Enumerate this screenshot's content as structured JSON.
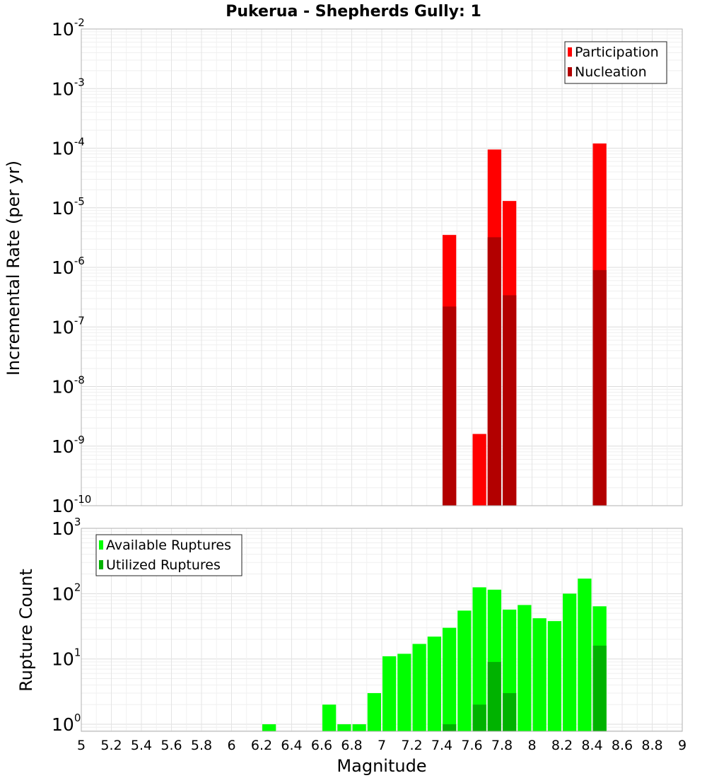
{
  "chart_data": {
    "title": "Pukerua - Shepherds Gully: 1",
    "xlabel": "Magnitude",
    "x_ticks": [
      "5",
      "5.2",
      "5.4",
      "5.6",
      "5.8",
      "6",
      "6.2",
      "6.4",
      "6.6",
      "6.8",
      "7",
      "7.2",
      "7.4",
      "7.6",
      "7.8",
      "8",
      "8.2",
      "8.4",
      "8.6",
      "8.8",
      "9"
    ],
    "xlim": [
      5,
      9
    ],
    "bin_width": 0.1,
    "panels": [
      {
        "type": "bar",
        "scale": "log",
        "ylabel": "Incremental Rate (per yr)",
        "ylim": [
          1e-10,
          0.01
        ],
        "y_ticks": [
          {
            "base": "10",
            "exp": "-10",
            "value": 1e-10
          },
          {
            "base": "10",
            "exp": "-9",
            "value": 1e-09
          },
          {
            "base": "10",
            "exp": "-8",
            "value": 1e-08
          },
          {
            "base": "10",
            "exp": "-7",
            "value": 1e-07
          },
          {
            "base": "10",
            "exp": "-6",
            "value": 1e-06
          },
          {
            "base": "10",
            "exp": "-5",
            "value": 1e-05
          },
          {
            "base": "10",
            "exp": "-4",
            "value": 0.0001
          },
          {
            "base": "10",
            "exp": "-3",
            "value": 0.001
          },
          {
            "base": "10",
            "exp": "-2",
            "value": 0.01
          }
        ],
        "legend": "top-right",
        "series": [
          {
            "name": "Participation",
            "color": "#ff0000",
            "points": [
              {
                "x": 7.45,
                "y": 3.5e-06
              },
              {
                "x": 7.65,
                "y": 1.6e-09
              },
              {
                "x": 7.75,
                "y": 9.5e-05
              },
              {
                "x": 7.85,
                "y": 1.3e-05
              },
              {
                "x": 8.45,
                "y": 0.00012
              }
            ]
          },
          {
            "name": "Nucleation",
            "color": "#b20000",
            "points": [
              {
                "x": 7.45,
                "y": 2.2e-07
              },
              {
                "x": 7.75,
                "y": 3.2e-06
              },
              {
                "x": 7.85,
                "y": 3.4e-07
              },
              {
                "x": 8.45,
                "y": 9e-07
              }
            ]
          }
        ]
      },
      {
        "type": "bar",
        "scale": "log",
        "ylabel": "Rupture Count",
        "ylim": [
          0.78,
          1000
        ],
        "y_ticks": [
          {
            "base": "10",
            "exp": "0",
            "value": 1
          },
          {
            "base": "10",
            "exp": "1",
            "value": 10
          },
          {
            "base": "10",
            "exp": "2",
            "value": 100
          },
          {
            "base": "10",
            "exp": "3",
            "value": 1000
          }
        ],
        "legend": "top-left",
        "series": [
          {
            "name": "Available Ruptures",
            "color": "#00ff00",
            "points": [
              {
                "x": 6.25,
                "y": 1
              },
              {
                "x": 6.65,
                "y": 2
              },
              {
                "x": 6.75,
                "y": 1
              },
              {
                "x": 6.85,
                "y": 1
              },
              {
                "x": 6.95,
                "y": 3
              },
              {
                "x": 7.05,
                "y": 11
              },
              {
                "x": 7.15,
                "y": 12
              },
              {
                "x": 7.25,
                "y": 17
              },
              {
                "x": 7.35,
                "y": 22
              },
              {
                "x": 7.45,
                "y": 30
              },
              {
                "x": 7.55,
                "y": 55
              },
              {
                "x": 7.65,
                "y": 125
              },
              {
                "x": 7.75,
                "y": 115
              },
              {
                "x": 7.85,
                "y": 57
              },
              {
                "x": 7.95,
                "y": 67
              },
              {
                "x": 8.05,
                "y": 42
              },
              {
                "x": 8.15,
                "y": 38
              },
              {
                "x": 8.25,
                "y": 100
              },
              {
                "x": 8.35,
                "y": 170
              },
              {
                "x": 8.45,
                "y": 64
              }
            ]
          },
          {
            "name": "Utilized Ruptures",
            "color": "#00b200",
            "points": [
              {
                "x": 7.45,
                "y": 1
              },
              {
                "x": 7.65,
                "y": 2
              },
              {
                "x": 7.75,
                "y": 9
              },
              {
                "x": 7.85,
                "y": 3
              },
              {
                "x": 8.45,
                "y": 16
              }
            ]
          }
        ]
      }
    ]
  }
}
